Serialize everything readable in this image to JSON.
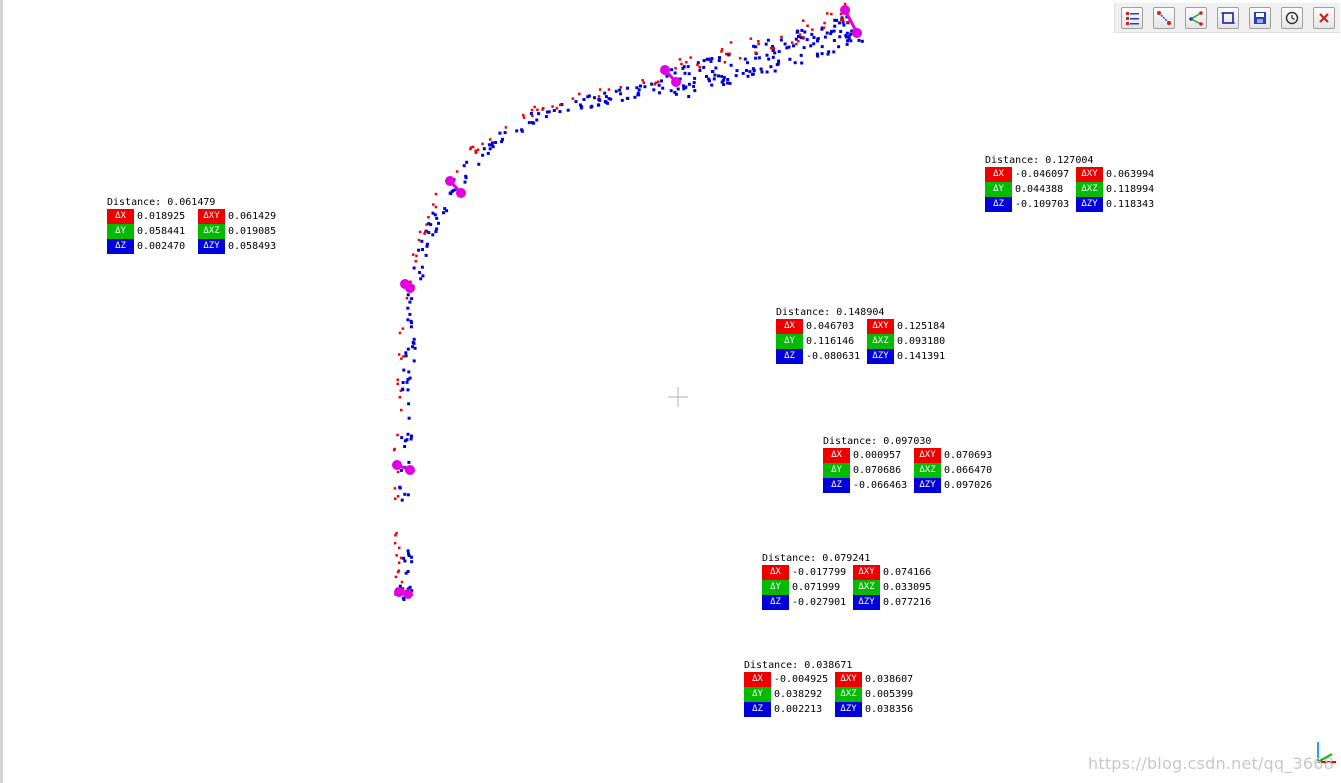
{
  "toolbar": {
    "buttons": [
      {
        "name": "layers-list-icon",
        "color": "#1f3fbf"
      },
      {
        "name": "point-pick-icon",
        "color": "#cc2222"
      },
      {
        "name": "angle-measure-icon",
        "color": "#22aa22"
      },
      {
        "name": "frame-select-icon",
        "color": "#1f1f9f"
      },
      {
        "name": "save-icon",
        "color": "#1f3fbf"
      },
      {
        "name": "reset-icon",
        "color": "#333333"
      },
      {
        "name": "close-icon",
        "color": "#cc2222"
      }
    ]
  },
  "colors": {
    "red": "#ee0000",
    "green": "#00bb00",
    "blue": "#0000dd",
    "magenta": "#e000e0"
  },
  "labels": {
    "dx": "ΔX",
    "dy": "ΔY",
    "dz": "ΔZ",
    "dxy": "ΔXY",
    "dxz": "ΔXZ",
    "dzy": "ΔZY",
    "distance": "Distance:"
  },
  "measurements": [
    {
      "id": "m1",
      "distance": "0.061479",
      "dx": "0.018925",
      "dy": "0.058441",
      "dz": "0.002470",
      "dxy": "0.061429",
      "dxz": "0.019085",
      "dzy": "0.058493"
    },
    {
      "id": "m2",
      "distance": "0.127004",
      "dx": "-0.046097",
      "dy": "0.044388",
      "dz": "-0.109703",
      "dxy": "0.063994",
      "dxz": "0.118994",
      "dzy": "0.118343"
    },
    {
      "id": "m3",
      "distance": "0.148904",
      "dx": "0.046703",
      "dy": "0.116146",
      "dz": "-0.080631",
      "dxy": "0.125184",
      "dxz": "0.093180",
      "dzy": "0.141391"
    },
    {
      "id": "m4",
      "distance": "0.097030",
      "dx": "0.000957",
      "dy": "0.070686",
      "dz": "-0.066463",
      "dxy": "0.070693",
      "dxz": "0.066470",
      "dzy": "0.097026"
    },
    {
      "id": "m5",
      "distance": "0.079241",
      "dx": "-0.017799",
      "dy": "0.071999",
      "dz": "-0.027901",
      "dxy": "0.074166",
      "dxz": "0.033095",
      "dzy": "0.077216"
    },
    {
      "id": "m6",
      "distance": "0.038671",
      "dx": "-0.004925",
      "dy": "0.038292",
      "dz": "0.002213",
      "dxy": "0.038607",
      "dxz": "0.005399",
      "dzy": "0.038356"
    }
  ],
  "watermark": "https://blog.csdn.net/qq_3668"
}
